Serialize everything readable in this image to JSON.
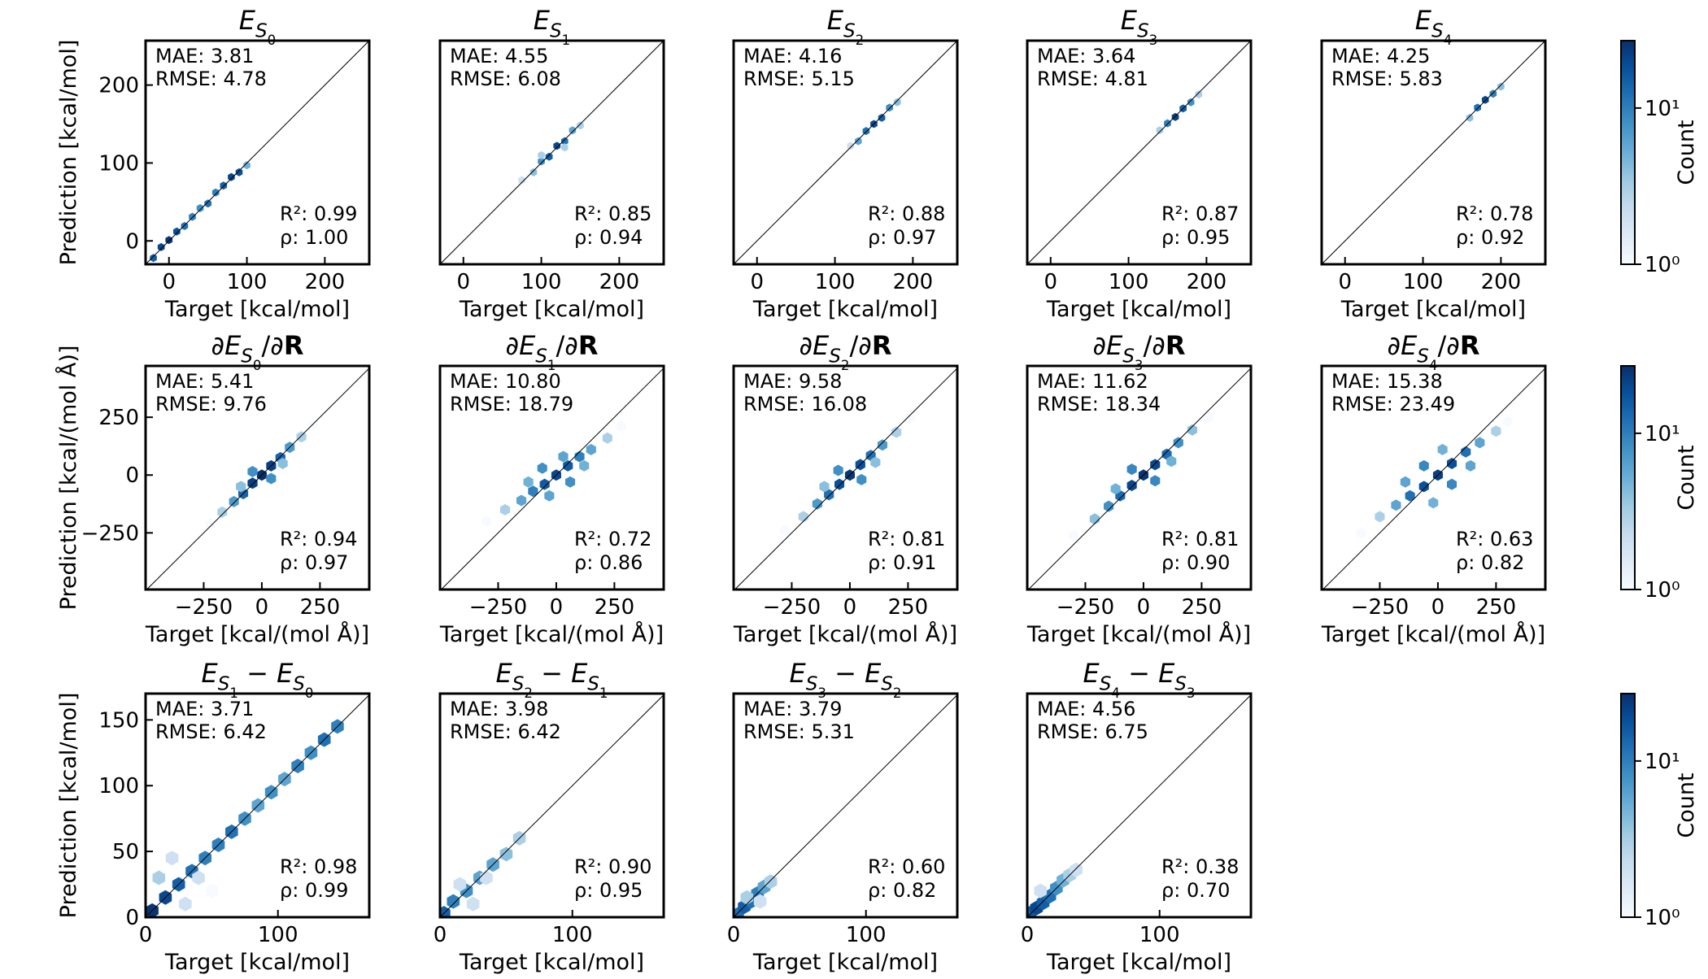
{
  "chart_data": [
    {
      "type": "hexbin",
      "title": "E_{S_{0}}",
      "xlabel": "Target [kcal/mol]",
      "ylabel": "Prediction [kcal/mol]",
      "xlim": [
        -30,
        257
      ],
      "ylim": [
        -30,
        257
      ],
      "xticks": [
        0,
        100,
        200
      ],
      "yticks": [
        0,
        100,
        200
      ],
      "annotations": [
        "MAE: 3.81",
        "RMSE: 4.78",
        "R²: 0.99",
        "ρ: 1.00"
      ],
      "hexbins": {
        "x": [
          -20,
          -10,
          0,
          10,
          20,
          30,
          40,
          50,
          60,
          70,
          80,
          90,
          100
        ],
        "y": [
          -22,
          -8,
          1,
          12,
          19,
          31,
          42,
          48,
          62,
          71,
          82,
          88,
          97
        ],
        "counts": [
          15,
          20,
          25,
          18,
          12,
          10,
          8,
          12,
          10,
          15,
          20,
          18,
          5
        ]
      }
    },
    {
      "type": "hexbin",
      "title": "E_{S_{1}}",
      "xlabel": "Target [kcal/mol]",
      "xlim": [
        -30,
        257
      ],
      "ylim": [
        -30,
        257
      ],
      "xticks": [
        0,
        100,
        200
      ],
      "annotations": [
        "MAE: 4.55",
        "RMSE: 6.08",
        "R²: 0.85",
        "ρ: 0.94"
      ],
      "hexbins": {
        "x": [
          75,
          90,
          100,
          110,
          120,
          130,
          140,
          150,
          160,
          100,
          130
        ],
        "y": [
          78,
          88,
          102,
          108,
          122,
          128,
          142,
          148,
          158,
          110,
          120
        ],
        "counts": [
          2,
          4,
          8,
          15,
          20,
          12,
          6,
          3,
          1,
          3,
          3
        ]
      }
    },
    {
      "type": "hexbin",
      "title": "E_{S_{2}}",
      "xlabel": "Target [kcal/mol]",
      "xlim": [
        -30,
        257
      ],
      "ylim": [
        -30,
        257
      ],
      "xticks": [
        0,
        100,
        200
      ],
      "annotations": [
        "MAE: 4.16",
        "RMSE: 5.15",
        "R²: 0.88",
        "ρ: 0.97"
      ],
      "hexbins": {
        "x": [
          120,
          130,
          140,
          150,
          160,
          170,
          180,
          190
        ],
        "y": [
          122,
          128,
          141,
          150,
          158,
          171,
          178,
          188
        ],
        "counts": [
          2,
          6,
          12,
          20,
          15,
          8,
          4,
          1
        ]
      }
    },
    {
      "type": "hexbin",
      "title": "E_{S_{3}}",
      "xlabel": "Target [kcal/mol]",
      "xlim": [
        -30,
        257
      ],
      "ylim": [
        -30,
        257
      ],
      "xticks": [
        0,
        100,
        200
      ],
      "annotations": [
        "MAE: 3.64",
        "RMSE: 4.81",
        "R²: 0.87",
        "ρ: 0.95"
      ],
      "hexbins": {
        "x": [
          140,
          150,
          160,
          170,
          180,
          190,
          200
        ],
        "y": [
          142,
          151,
          159,
          170,
          178,
          188,
          197
        ],
        "counts": [
          3,
          10,
          22,
          15,
          8,
          3,
          1
        ]
      }
    },
    {
      "type": "hexbin",
      "title": "E_{S_{4}}",
      "xlabel": "Target [kcal/mol]",
      "xlim": [
        -30,
        257
      ],
      "ylim": [
        -30,
        257
      ],
      "xticks": [
        0,
        100,
        200
      ],
      "annotations": [
        "MAE: 4.25",
        "RMSE: 5.83",
        "R²: 0.78",
        "ρ: 0.92"
      ],
      "hexbins": {
        "x": [
          160,
          170,
          180,
          190,
          200,
          205
        ],
        "y": [
          158,
          171,
          181,
          189,
          198,
          206
        ],
        "counts": [
          4,
          12,
          20,
          10,
          4,
          1
        ]
      }
    },
    {
      "type": "hexbin",
      "title": "∂E_{S_{0}}/∂**R**",
      "xlabel": "Target [kcal/(mol Å)]",
      "ylabel": "Prediction [kcal/(mol Å)]",
      "xlim": [
        -500,
        462
      ],
      "ylim": [
        -495,
        472
      ],
      "xticks": [
        {
          "value": -250,
          "label": "−250"
        },
        0,
        250
      ],
      "yticks": [
        {
          "value": -250,
          "label": "−250"
        },
        0,
        250
      ],
      "annotations": [
        "MAE: 5.41",
        "RMSE: 9.76",
        "R²: 0.94",
        "ρ: 0.97"
      ],
      "hexbins": {
        "x": [
          0,
          -40,
          40,
          -80,
          80,
          -120,
          120,
          -170,
          170,
          -40,
          40,
          -90,
          90,
          -220,
          220
        ],
        "y": [
          0,
          -35,
          40,
          -80,
          75,
          -115,
          120,
          -160,
          165,
          15,
          -15,
          -50,
          50,
          -210,
          215
        ],
        "counts": [
          27,
          22,
          22,
          14,
          14,
          7,
          7,
          3,
          3,
          8,
          8,
          4,
          4,
          1,
          1
        ]
      }
    },
    {
      "type": "hexbin",
      "title": "∂E_{S_{1}}/∂**R**",
      "xlabel": "Target [kcal/(mol Å)]",
      "xlim": [
        -500,
        462
      ],
      "ylim": [
        -495,
        472
      ],
      "xticks": [
        {
          "value": -250,
          "label": "−250"
        },
        0,
        250
      ],
      "annotations": [
        "MAE: 10.80",
        "RMSE: 18.79",
        "R²: 0.72",
        "ρ: 0.86"
      ],
      "hexbins": {
        "x": [
          0,
          -50,
          50,
          -100,
          100,
          -150,
          150,
          -220,
          220,
          -60,
          60,
          -120,
          120,
          -300,
          280,
          -30,
          30
        ],
        "y": [
          0,
          -40,
          40,
          -70,
          80,
          -110,
          110,
          -150,
          160,
          30,
          -30,
          -30,
          40,
          -200,
          210,
          -90,
          80
        ],
        "counts": [
          20,
          16,
          16,
          10,
          10,
          6,
          6,
          3,
          3,
          8,
          8,
          5,
          5,
          1,
          1,
          6,
          6
        ]
      }
    },
    {
      "type": "hexbin",
      "title": "∂E_{S_{2}}/∂**R**",
      "xlabel": "Target [kcal/(mol Å)]",
      "xlim": [
        -500,
        462
      ],
      "ylim": [
        -495,
        472
      ],
      "xticks": [
        {
          "value": -250,
          "label": "−250"
        },
        0,
        250
      ],
      "annotations": [
        "MAE: 9.58",
        "RMSE: 16.08",
        "R²: 0.81",
        "ρ: 0.91"
      ],
      "hexbins": {
        "x": [
          0,
          -45,
          45,
          -90,
          90,
          -140,
          140,
          -200,
          200,
          -50,
          50,
          -110,
          110,
          -280,
          260
        ],
        "y": [
          0,
          -40,
          45,
          -85,
          85,
          -125,
          130,
          -180,
          185,
          20,
          -20,
          -50,
          55,
          -240,
          250
        ],
        "counts": [
          24,
          18,
          18,
          12,
          12,
          7,
          7,
          3,
          3,
          8,
          8,
          4,
          4,
          1,
          1
        ]
      }
    },
    {
      "type": "hexbin",
      "title": "∂E_{S_{3}}/∂**R**",
      "xlabel": "Target [kcal/(mol Å)]",
      "xlim": [
        -500,
        462
      ],
      "ylim": [
        -495,
        472
      ],
      "xticks": [
        {
          "value": -250,
          "label": "−250"
        },
        0,
        250
      ],
      "annotations": [
        "MAE: 11.62",
        "RMSE: 18.34",
        "R²: 0.81",
        "ρ: 0.90"
      ],
      "hexbins": {
        "x": [
          0,
          -50,
          50,
          -100,
          100,
          -150,
          150,
          -210,
          210,
          -50,
          50,
          -120,
          120,
          -300,
          280
        ],
        "y": [
          0,
          -45,
          45,
          -90,
          90,
          -135,
          140,
          -190,
          195,
          25,
          -25,
          -60,
          60,
          -260,
          250
        ],
        "counts": [
          25,
          20,
          20,
          13,
          13,
          8,
          8,
          4,
          4,
          9,
          9,
          5,
          5,
          1,
          1
        ]
      }
    },
    {
      "type": "hexbin",
      "title": "∂E_{S_{4}}/∂**R**",
      "xlabel": "Target [kcal/(mol Å)]",
      "xlim": [
        -500,
        462
      ],
      "ylim": [
        -495,
        472
      ],
      "xticks": [
        {
          "value": -250,
          "label": "−250"
        },
        0,
        250
      ],
      "annotations": [
        "MAE: 15.38",
        "RMSE: 23.49",
        "R²: 0.63",
        "ρ: 0.82"
      ],
      "hexbins": {
        "x": [
          0,
          -60,
          60,
          -120,
          120,
          -180,
          180,
          -250,
          250,
          -60,
          60,
          -140,
          140,
          -330,
          300,
          -20,
          20
        ],
        "y": [
          0,
          -50,
          50,
          -90,
          100,
          -130,
          140,
          -180,
          190,
          40,
          -40,
          -30,
          40,
          -250,
          230,
          -120,
          110
        ],
        "counts": [
          22,
          18,
          18,
          12,
          12,
          6,
          6,
          3,
          3,
          9,
          9,
          6,
          6,
          1,
          1,
          5,
          5
        ]
      }
    },
    {
      "type": "hexbin",
      "title": "E_{S_{1}} − E_{S_{0}}",
      "xlabel": "Target [kcal/mol]",
      "ylabel": "Prediction [kcal/mol]",
      "xlim": [
        0,
        169
      ],
      "ylim": [
        0,
        170
      ],
      "xticks": [
        0,
        100
      ],
      "yticks": [
        0,
        50,
        100,
        150
      ],
      "annotations": [
        "MAE: 3.71",
        "RMSE: 6.42",
        "R²: 0.98",
        "ρ: 0.99"
      ],
      "hexbins": {
        "x": [
          5,
          15,
          25,
          35,
          45,
          55,
          65,
          75,
          85,
          95,
          105,
          115,
          125,
          135,
          145,
          20,
          40,
          30,
          10,
          50
        ],
        "y": [
          5,
          15,
          25,
          35,
          45,
          55,
          65,
          75,
          85,
          95,
          105,
          115,
          125,
          135,
          145,
          45,
          30,
          10,
          30,
          20
        ],
        "counts": [
          25,
          20,
          15,
          12,
          10,
          10,
          12,
          8,
          6,
          8,
          6,
          10,
          8,
          12,
          10,
          2,
          2,
          2,
          3,
          1
        ]
      }
    },
    {
      "type": "hexbin",
      "title": "E_{S_{2}} − E_{S_{1}}",
      "xlabel": "Target [kcal/mol]",
      "xlim": [
        0,
        169
      ],
      "ylim": [
        0,
        170
      ],
      "xticks": [
        0,
        100
      ],
      "annotations": [
        "MAE: 3.98",
        "RMSE: 6.42",
        "R²: 0.90",
        "ρ: 0.95"
      ],
      "hexbins": {
        "x": [
          3,
          10,
          20,
          30,
          40,
          50,
          60,
          15,
          35,
          25
        ],
        "y": [
          3,
          12,
          20,
          30,
          40,
          48,
          60,
          25,
          30,
          10
        ],
        "counts": [
          15,
          10,
          8,
          6,
          6,
          4,
          3,
          2,
          2,
          2
        ]
      }
    },
    {
      "type": "hexbin",
      "title": "E_{S_{3}} − E_{S_{2}}",
      "xlabel": "Target [kcal/mol]",
      "xlim": [
        0,
        169
      ],
      "ylim": [
        0,
        170
      ],
      "xticks": [
        0,
        100
      ],
      "annotations": [
        "MAE: 3.79",
        "RMSE: 5.31",
        "R²: 0.60",
        "ρ: 0.82"
      ],
      "hexbins": {
        "x": [
          3,
          8,
          13,
          18,
          23,
          28,
          10,
          20
        ],
        "y": [
          2,
          8,
          12,
          18,
          23,
          27,
          15,
          12
        ],
        "counts": [
          12,
          15,
          12,
          10,
          6,
          3,
          3,
          2
        ]
      }
    },
    {
      "type": "hexbin",
      "title": "E_{S_{4}} − E_{S_{3}}",
      "xlabel": "Target [kcal/mol]",
      "xlim": [
        0,
        169
      ],
      "ylim": [
        0,
        170
      ],
      "xticks": [
        0,
        100
      ],
      "annotations": [
        "MAE: 4.56",
        "RMSE: 6.75",
        "R²: 0.38",
        "ρ: 0.70"
      ],
      "hexbins": {
        "x": [
          2,
          7,
          12,
          17,
          22,
          27,
          32,
          37,
          10
        ],
        "y": [
          3,
          7,
          11,
          16,
          22,
          28,
          32,
          36,
          20
        ],
        "counts": [
          15,
          20,
          15,
          12,
          8,
          5,
          3,
          2,
          2
        ]
      }
    },
    {
      "type": "colorbar",
      "label": "Count",
      "log": true,
      "lim": [
        1,
        27
      ],
      "ticks": [
        {
          "value": 1,
          "label": "10⁰"
        },
        {
          "value": 10,
          "label": "10¹"
        }
      ],
      "colormap": [
        "#f7fbff",
        "#deebf7",
        "#c6dbef",
        "#9ecae1",
        "#6baed6",
        "#4292c6",
        "#2171b5",
        "#08519c",
        "#08306b"
      ]
    },
    {
      "type": "colorbar",
      "label": "Count",
      "log": true,
      "lim": [
        1,
        27
      ],
      "ticks": [
        {
          "value": 1,
          "label": "10⁰"
        },
        {
          "value": 10,
          "label": "10¹"
        }
      ],
      "colormap": [
        "#f7fbff",
        "#deebf7",
        "#c6dbef",
        "#9ecae1",
        "#6baed6",
        "#4292c6",
        "#2171b5",
        "#08519c",
        "#08306b"
      ]
    },
    {
      "type": "colorbar",
      "label": "Count",
      "log": true,
      "lim": [
        1,
        27
      ],
      "ticks": [
        {
          "value": 1,
          "label": "10⁰"
        },
        {
          "value": 10,
          "label": "10¹"
        }
      ],
      "colormap": [
        "#f7fbff",
        "#deebf7",
        "#c6dbef",
        "#9ecae1",
        "#6baed6",
        "#4292c6",
        "#2171b5",
        "#08519c",
        "#08306b"
      ]
    }
  ]
}
